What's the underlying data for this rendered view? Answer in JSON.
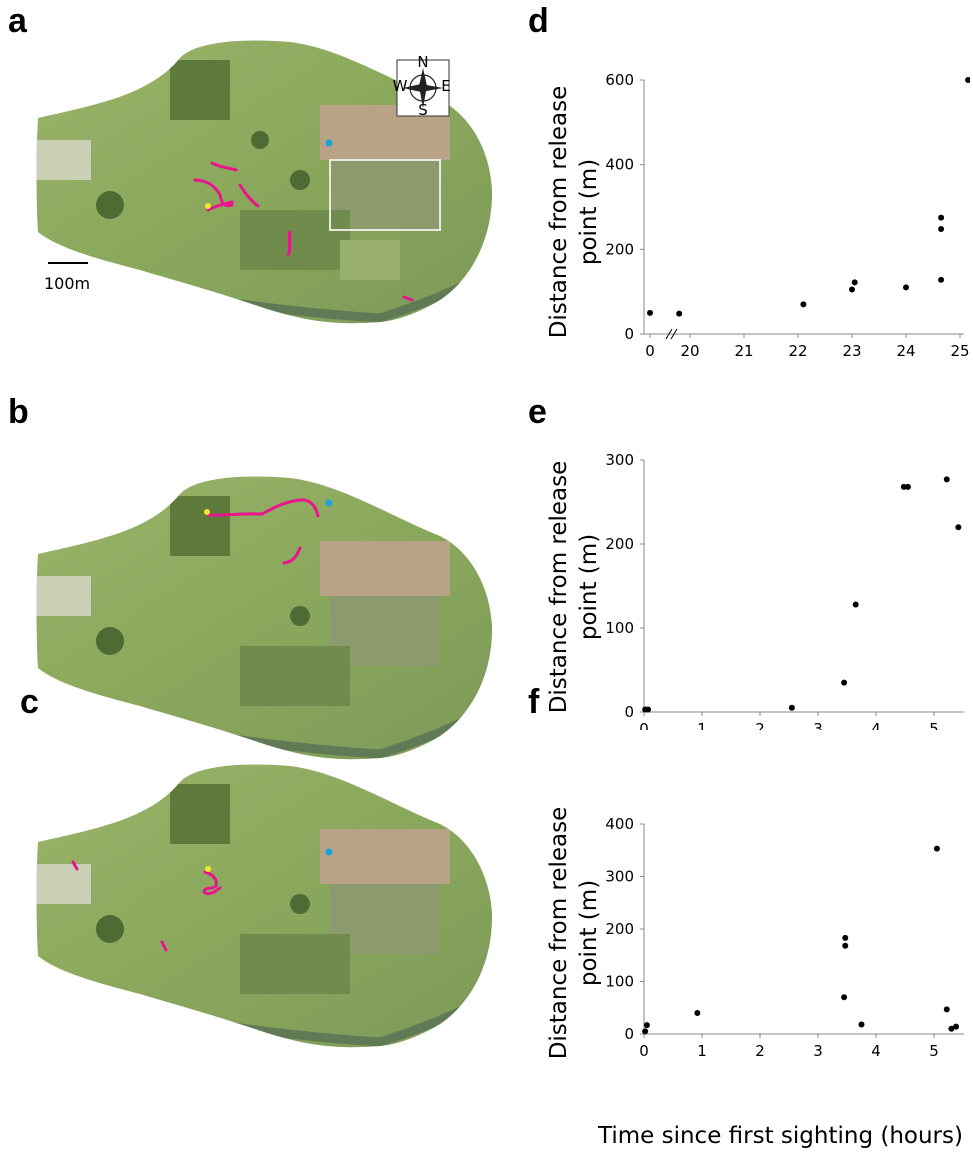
{
  "panels": {
    "a": "a",
    "b": "b",
    "c": "c",
    "d": "d",
    "e": "e",
    "f": "f"
  },
  "map": {
    "scale_label": "100m",
    "compass": {
      "n": "N",
      "s": "S",
      "e": "E",
      "w": "W"
    },
    "colors": {
      "track": "#e8158c",
      "release": "#f5e62a",
      "point": "#1aa3d9"
    }
  },
  "shared_xlabel": "Time since first sighting (hours)",
  "chart_data": [
    {
      "type": "scatter",
      "panel": "d",
      "ylabel": "Distance from release point (m)",
      "ylim": [
        0,
        600
      ],
      "yticks": [
        0,
        200,
        400,
        600
      ],
      "xticks": [
        "0",
        "20",
        "21",
        "22",
        "23",
        "24",
        "25"
      ],
      "axis_break": true,
      "points": [
        {
          "x": 0,
          "y": 50
        },
        {
          "x": 19.8,
          "y": 48
        },
        {
          "x": 22.1,
          "y": 70
        },
        {
          "x": 23.0,
          "y": 105
        },
        {
          "x": 23.05,
          "y": 122
        },
        {
          "x": 24.0,
          "y": 110
        },
        {
          "x": 24.65,
          "y": 128
        },
        {
          "x": 24.65,
          "y": 248
        },
        {
          "x": 24.65,
          "y": 275
        },
        {
          "x": 25.15,
          "y": 600
        }
      ]
    },
    {
      "type": "scatter",
      "panel": "e",
      "ylabel": "Distance from release point (m)",
      "ylim": [
        0,
        300
      ],
      "xlim": [
        0,
        5.5
      ],
      "yticks": [
        0,
        100,
        200,
        300
      ],
      "xticks": [
        0,
        1,
        2,
        3,
        4,
        5
      ],
      "points": [
        {
          "x": 0.02,
          "y": 3
        },
        {
          "x": 0.07,
          "y": 3
        },
        {
          "x": 2.55,
          "y": 5
        },
        {
          "x": 3.45,
          "y": 35
        },
        {
          "x": 3.65,
          "y": 128
        },
        {
          "x": 4.48,
          "y": 268
        },
        {
          "x": 4.55,
          "y": 268
        },
        {
          "x": 5.22,
          "y": 277
        },
        {
          "x": 5.42,
          "y": 220
        }
      ]
    },
    {
      "type": "scatter",
      "panel": "f",
      "ylabel": "Distance from release point (m)",
      "ylim": [
        0,
        400
      ],
      "xlim": [
        0,
        5.5
      ],
      "yticks": [
        0,
        100,
        200,
        300,
        400
      ],
      "xticks": [
        0,
        1,
        2,
        3,
        4,
        5
      ],
      "points": [
        {
          "x": 0.02,
          "y": 5
        },
        {
          "x": 0.05,
          "y": 17
        },
        {
          "x": 0.92,
          "y": 40
        },
        {
          "x": 3.45,
          "y": 70
        },
        {
          "x": 3.47,
          "y": 168
        },
        {
          "x": 3.47,
          "y": 183
        },
        {
          "x": 3.75,
          "y": 18
        },
        {
          "x": 5.05,
          "y": 353
        },
        {
          "x": 5.22,
          "y": 47
        },
        {
          "x": 5.3,
          "y": 10
        },
        {
          "x": 5.38,
          "y": 14
        }
      ]
    }
  ]
}
